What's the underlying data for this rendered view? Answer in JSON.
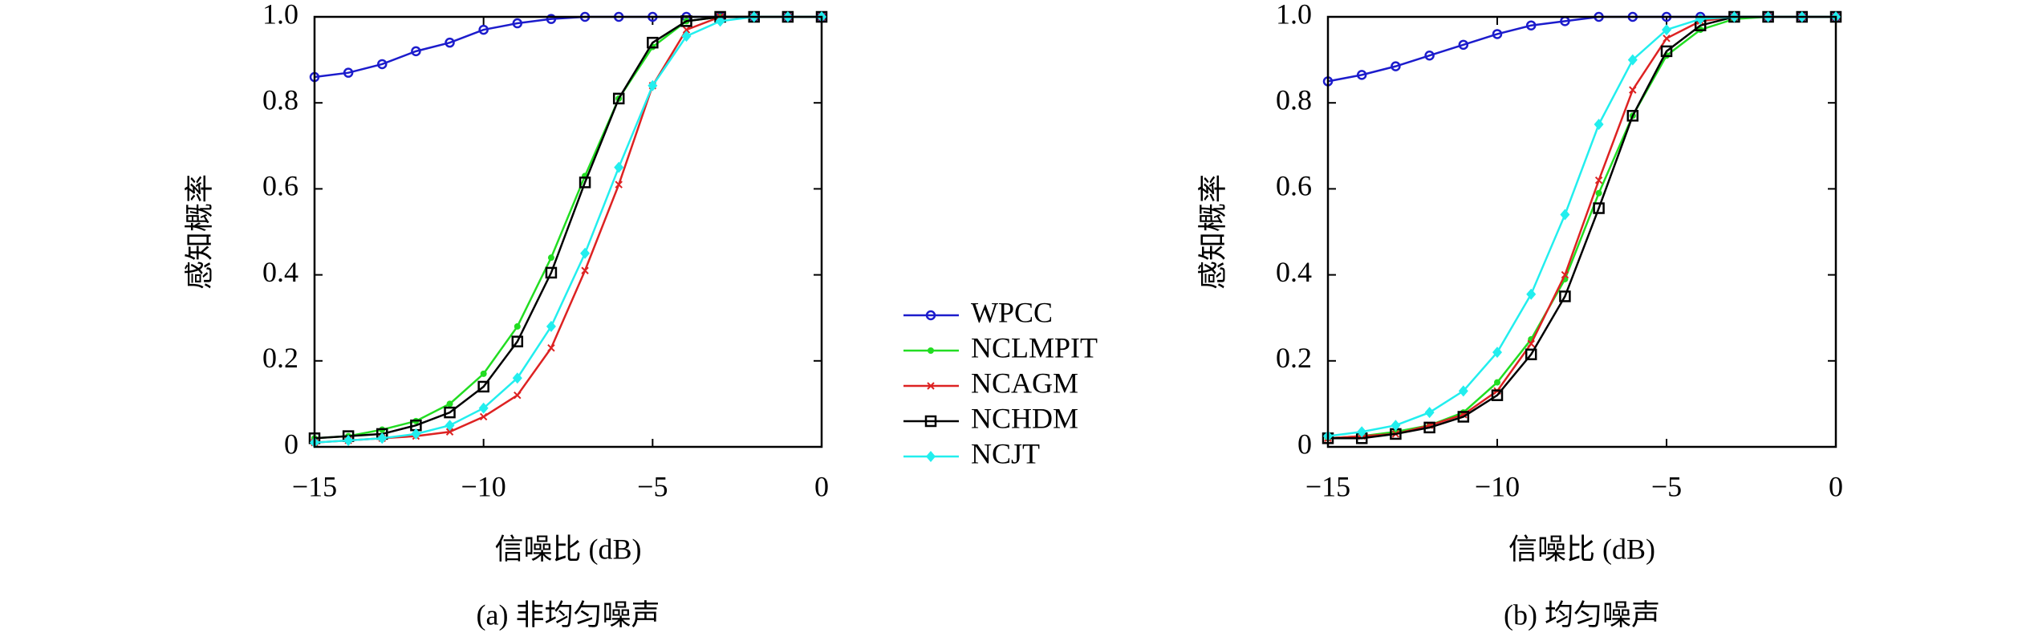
{
  "chart_data": [
    {
      "type": "line",
      "title": "(a) 非均匀噪声",
      "xlabel": "信噪比 (dB)",
      "ylabel": "感知概率",
      "x": [
        -15,
        -14,
        -13,
        -12,
        -11,
        -10,
        -9,
        -8,
        -7,
        -6,
        -5,
        -4,
        -3,
        -2,
        -1,
        0
      ],
      "xlim": [
        -15,
        0
      ],
      "ylim": [
        0,
        1
      ],
      "xticks": [
        {
          "value": -15,
          "label": "−15"
        },
        {
          "value": -10,
          "label": "−10"
        },
        {
          "value": -5,
          "label": "−5"
        },
        0
      ],
      "yticks": [
        0,
        0.2,
        0.4,
        0.6,
        0.8,
        {
          "value": 1,
          "label": "1.0"
        }
      ],
      "series": [
        {
          "name": "WPCC",
          "color": "#1c1ccc",
          "marker": "circle",
          "values": [
            0.86,
            0.87,
            0.89,
            0.92,
            0.94,
            0.97,
            0.985,
            0.995,
            1,
            1,
            1,
            1,
            1,
            1,
            1,
            1
          ]
        },
        {
          "name": "NCLMPIT",
          "color": "#22dd22",
          "marker": "dot",
          "values": [
            0.02,
            0.025,
            0.04,
            0.06,
            0.1,
            0.17,
            0.28,
            0.44,
            0.63,
            0.81,
            0.93,
            0.99,
            1,
            1,
            1,
            1
          ]
        },
        {
          "name": "NCAGM",
          "color": "#dd2222",
          "marker": "cross",
          "values": [
            0.01,
            0.015,
            0.02,
            0.025,
            0.035,
            0.07,
            0.12,
            0.23,
            0.41,
            0.61,
            0.84,
            0.97,
            1,
            1,
            1,
            1
          ]
        },
        {
          "name": "NCHDM",
          "color": "#000000",
          "marker": "square",
          "values": [
            0.02,
            0.025,
            0.03,
            0.05,
            0.08,
            0.14,
            0.245,
            0.405,
            0.615,
            0.81,
            0.94,
            0.99,
            1,
            1,
            1,
            1
          ]
        },
        {
          "name": "NCJT",
          "color": "#22eeee",
          "marker": "diamond",
          "values": [
            0.01,
            0.015,
            0.02,
            0.03,
            0.05,
            0.09,
            0.16,
            0.28,
            0.45,
            0.65,
            0.84,
            0.955,
            0.99,
            1,
            1,
            1
          ]
        }
      ]
    },
    {
      "type": "line",
      "title": "(b) 均匀噪声",
      "xlabel": "信噪比 (dB)",
      "ylabel": "感知概率",
      "x": [
        -15,
        -14,
        -13,
        -12,
        -11,
        -10,
        -9,
        -8,
        -7,
        -6,
        -5,
        -4,
        -3,
        -2,
        -1,
        0
      ],
      "xlim": [
        -15,
        0
      ],
      "ylim": [
        0,
        1
      ],
      "xticks": [
        {
          "value": -15,
          "label": "−15"
        },
        {
          "value": -10,
          "label": "−10"
        },
        {
          "value": -5,
          "label": "−5"
        },
        0
      ],
      "yticks": [
        0,
        0.2,
        0.4,
        0.6,
        0.8,
        {
          "value": 1,
          "label": "1.0"
        }
      ],
      "series": [
        {
          "name": "WPCC",
          "color": "#1c1ccc",
          "marker": "circle",
          "values": [
            0.85,
            0.865,
            0.885,
            0.91,
            0.935,
            0.96,
            0.98,
            0.99,
            1,
            1,
            1,
            1,
            1,
            1,
            1,
            1
          ]
        },
        {
          "name": "NCLMPIT",
          "color": "#22dd22",
          "marker": "dot",
          "values": [
            0.02,
            0.025,
            0.035,
            0.05,
            0.08,
            0.15,
            0.25,
            0.39,
            0.59,
            0.77,
            0.91,
            0.97,
            0.995,
            1,
            1,
            1
          ]
        },
        {
          "name": "NCAGM",
          "color": "#dd2222",
          "marker": "cross",
          "values": [
            0.02,
            0.025,
            0.03,
            0.05,
            0.075,
            0.13,
            0.24,
            0.4,
            0.62,
            0.83,
            0.95,
            0.99,
            1,
            1,
            1,
            1
          ]
        },
        {
          "name": "NCHDM",
          "color": "#000000",
          "marker": "square",
          "values": [
            0.02,
            0.02,
            0.03,
            0.045,
            0.07,
            0.12,
            0.215,
            0.35,
            0.555,
            0.77,
            0.92,
            0.98,
            1,
            1,
            1,
            1
          ]
        },
        {
          "name": "NCJT",
          "color": "#22eeee",
          "marker": "diamond",
          "values": [
            0.025,
            0.035,
            0.05,
            0.08,
            0.13,
            0.22,
            0.355,
            0.54,
            0.75,
            0.9,
            0.97,
            0.995,
            1,
            1,
            1,
            1
          ]
        }
      ]
    }
  ]
}
